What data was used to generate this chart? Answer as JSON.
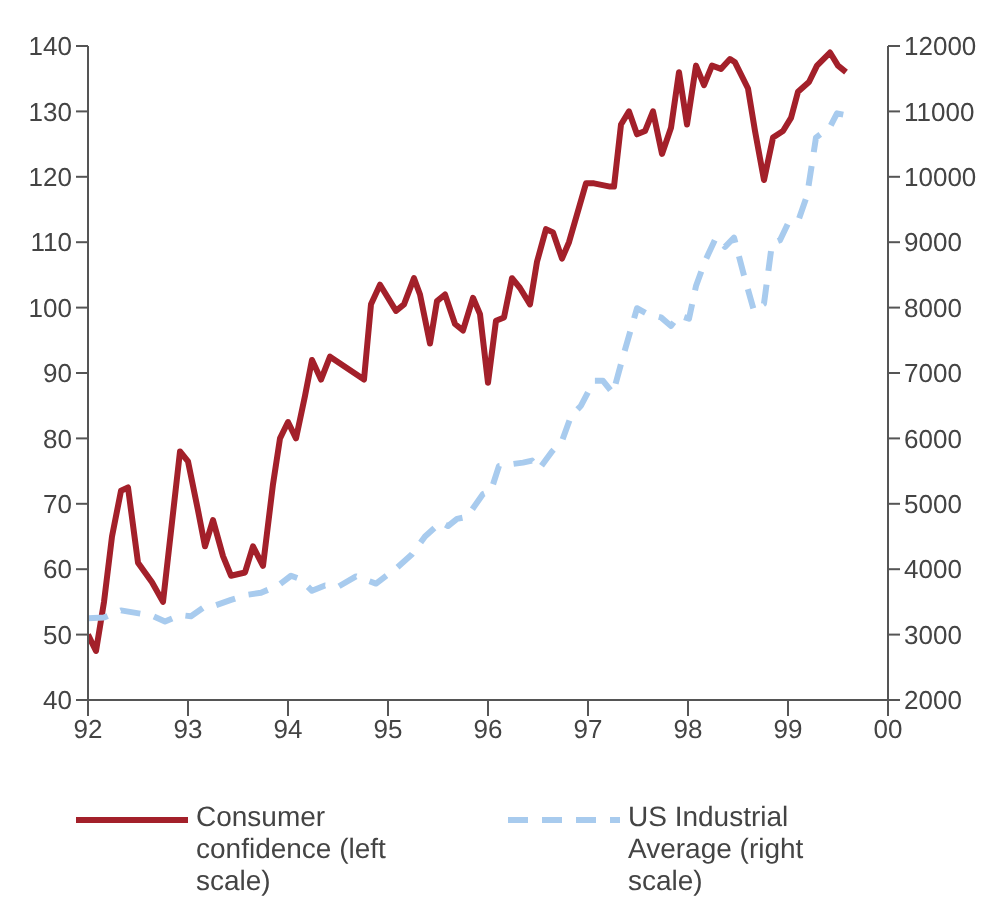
{
  "chart_data": {
    "type": "line",
    "xlim": [
      1992,
      2000
    ],
    "xticks": [
      {
        "value": 1992,
        "label": "92"
      },
      {
        "value": 1993,
        "label": "93"
      },
      {
        "value": 1994,
        "label": "94"
      },
      {
        "value": 1995,
        "label": "95"
      },
      {
        "value": 1996,
        "label": "96"
      },
      {
        "value": 1997,
        "label": "97"
      },
      {
        "value": 1998,
        "label": "98"
      },
      {
        "value": 1999,
        "label": "99"
      },
      {
        "value": 2000,
        "label": "00"
      }
    ],
    "ylim": [
      40,
      140
    ],
    "yticks": [
      40,
      50,
      60,
      70,
      80,
      90,
      100,
      110,
      120,
      130,
      140
    ],
    "y2lim": [
      2000,
      12000
    ],
    "y2ticks": [
      2000,
      3000,
      4000,
      5000,
      6000,
      7000,
      8000,
      9000,
      10000,
      11000,
      12000
    ],
    "legend": "bottom",
    "marker": "none",
    "series": [
      {
        "name": "Consumer confidence (left scale)",
        "color": "#a3202a",
        "line_style": "solid",
        "x": [
          1992.0,
          1992.08,
          1992.16,
          1992.24,
          1992.33,
          1992.4,
          1992.5,
          1992.64,
          1992.75,
          1992.92,
          1993.0,
          1993.1,
          1993.17,
          1993.25,
          1993.35,
          1993.43,
          1993.57,
          1993.65,
          1993.75,
          1993.85,
          1993.92,
          1994.0,
          1994.08,
          1994.17,
          1994.24,
          1994.33,
          1994.42,
          1994.76,
          1994.83,
          1994.92,
          1995.08,
          1995.16,
          1995.26,
          1995.32,
          1995.42,
          1995.49,
          1995.57,
          1995.67,
          1995.75,
          1995.85,
          1995.92,
          1996.0,
          1996.08,
          1996.16,
          1996.24,
          1996.32,
          1996.42,
          1996.49,
          1996.58,
          1996.65,
          1996.74,
          1996.81,
          1996.98,
          1997.06,
          1997.22,
          1997.26,
          1997.33,
          1997.41,
          1997.49,
          1997.57,
          1997.65,
          1997.74,
          1997.83,
          1997.91,
          1997.99,
          1998.08,
          1998.16,
          1998.24,
          1998.33,
          1998.42,
          1998.47,
          1998.6,
          1998.67,
          1998.76,
          1998.85,
          1998.95,
          1999.03,
          1999.1,
          1999.21,
          1999.29,
          1999.42,
          1999.5,
          1999.58
        ],
        "values": [
          50,
          47.5,
          55,
          65,
          72,
          72.5,
          61,
          58,
          55,
          78,
          76.5,
          69,
          63.5,
          67.5,
          62,
          59,
          59.5,
          63.5,
          60.5,
          73,
          80,
          82.5,
          80,
          86.5,
          92,
          89,
          92.5,
          89,
          100.5,
          103.5,
          99.5,
          100.5,
          104.5,
          102,
          94.5,
          101,
          102,
          97.5,
          96.5,
          101.5,
          99,
          88.5,
          98,
          98.5,
          104.5,
          103,
          100.5,
          107,
          112,
          111.5,
          107.5,
          110,
          119,
          119,
          118.5,
          118.5,
          128,
          130,
          126.5,
          127,
          130,
          123.5,
          127.5,
          136,
          128,
          137,
          134,
          137,
          136.5,
          138,
          137.5,
          133.5,
          127,
          119.5,
          126,
          127,
          129,
          133,
          134.5,
          137,
          139,
          137,
          136
        ]
      },
      {
        "name": "US Industrial Average (right scale)",
        "color": "#a8cbee",
        "line_style": "dashed",
        "axis": "y2",
        "x": [
          1992.0,
          1992.16,
          1992.33,
          1992.64,
          1992.77,
          1992.92,
          1993.03,
          1993.17,
          1993.28,
          1993.43,
          1993.6,
          1993.73,
          1993.9,
          1994.03,
          1994.12,
          1994.24,
          1994.37,
          1994.5,
          1994.68,
          1994.88,
          1995.08,
          1995.24,
          1995.37,
          1995.53,
          1995.6,
          1995.69,
          1995.79,
          1995.95,
          1996.03,
          1996.11,
          1996.35,
          1996.44,
          1996.51,
          1996.64,
          1996.74,
          1996.83,
          1996.93,
          1997.06,
          1997.15,
          1997.25,
          1997.35,
          1997.49,
          1997.6,
          1997.73,
          1997.83,
          1997.91,
          1998.01,
          1998.08,
          1998.17,
          1998.28,
          1998.37,
          1998.46,
          1998.56,
          1998.66,
          1998.76,
          1998.84,
          1998.92,
          1999.01,
          1999.11,
          1999.19,
          1999.28,
          1999.42,
          1999.49,
          1999.59
        ],
        "values": [
          3250,
          3260,
          3370,
          3290,
          3200,
          3300,
          3280,
          3430,
          3450,
          3530,
          3610,
          3640,
          3750,
          3900,
          3850,
          3670,
          3750,
          3730,
          3890,
          3780,
          4010,
          4230,
          4500,
          4720,
          4660,
          4770,
          4800,
          5150,
          5200,
          5580,
          5630,
          5660,
          5530,
          5800,
          5960,
          6340,
          6500,
          6880,
          6880,
          6690,
          7250,
          7990,
          7900,
          7850,
          7720,
          7880,
          7830,
          8330,
          8710,
          9070,
          8930,
          9070,
          8490,
          7950,
          8060,
          8980,
          9030,
          9320,
          9360,
          9710,
          10600,
          10760,
          10970,
          10940
        ]
      }
    ]
  }
}
